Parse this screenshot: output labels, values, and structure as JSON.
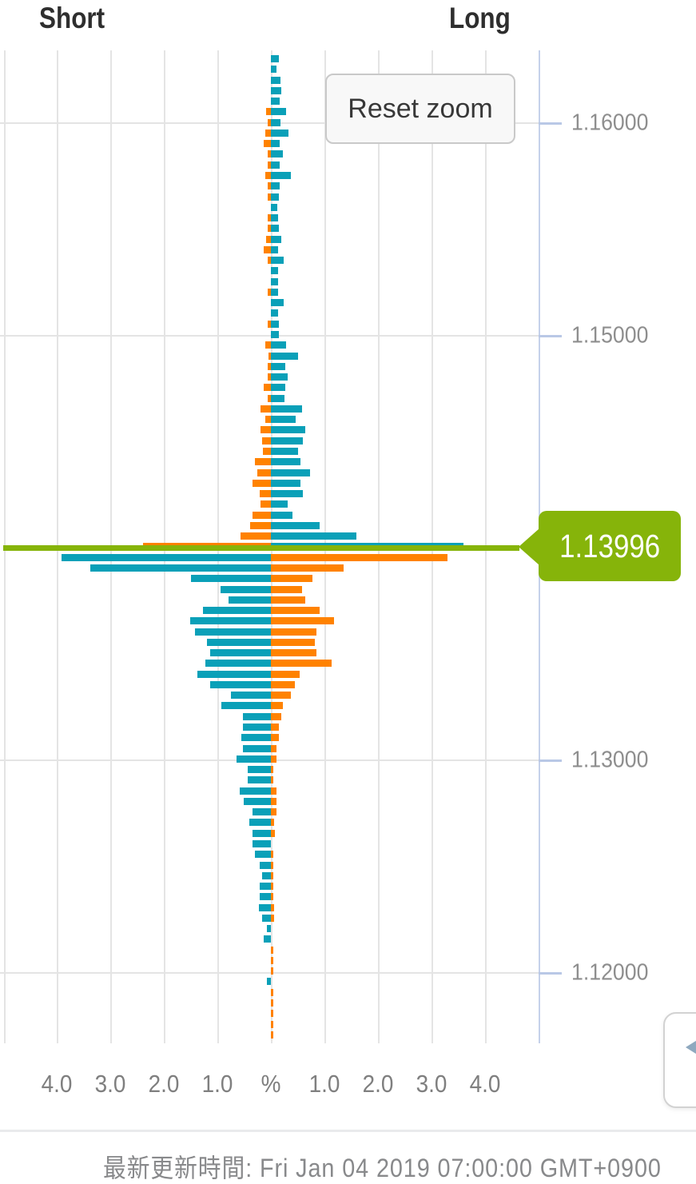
{
  "header": {
    "short_label": "Short",
    "long_label": "Long"
  },
  "reset_button": {
    "label": "Reset zoom"
  },
  "current_price": {
    "label": "1.13996",
    "value": 1.13996
  },
  "footer": {
    "text": "最新更新時間: Fri Jan 04 2019 07:00:00 GMT+0900"
  },
  "icons": {
    "side_widget_arrow": "left-triangle"
  },
  "colors": {
    "teal": "#0aa0b8",
    "orange": "#ff8200",
    "green": "#86b40a",
    "grid": "#e4e4e4",
    "axis_line": "#c5d1ea",
    "axis_tick": "#b9c8e6",
    "price_label": "#8e8e8e",
    "x_label": "#7f7f7f"
  },
  "chart_data": {
    "type": "bar",
    "orientation": "horizontal-bidirectional",
    "title_left": "Short",
    "title_right": "Long",
    "xlabel": "%",
    "x_tick_labels": [
      "4.0",
      "3.0",
      "2.0",
      "1.0",
      "%",
      "1.0",
      "2.0",
      "3.0",
      "4.0"
    ],
    "x_range_pct": [
      -4.5,
      4.5
    ],
    "grid": true,
    "price_axis": {
      "side": "right",
      "labels": [
        {
          "text": "1.16000",
          "value": 1.16
        },
        {
          "text": "1.15000",
          "value": 1.15
        },
        {
          "text": "1.13000",
          "value": 1.13
        },
        {
          "text": "1.12000",
          "value": 1.12
        }
      ]
    },
    "current_price_line": {
      "value": 1.13996,
      "label": "1.13996"
    },
    "row_price_start": 1.16303,
    "row_price_step": -0.0005,
    "divider_row_index": 46,
    "color_rule": {
      "above_line": {
        "short_side": "orange",
        "long_side": "teal"
      },
      "below_line": {
        "short_side": "teal",
        "long_side": "orange"
      }
    },
    "rows_pct_short_long": [
      [
        0,
        0.15
      ],
      [
        0,
        0.1
      ],
      [
        0,
        0.18
      ],
      [
        0,
        0.19
      ],
      [
        0,
        0.17
      ],
      [
        0.09,
        0.28
      ],
      [
        0.06,
        0.18
      ],
      [
        0.1,
        0.33
      ],
      [
        0.13,
        0.16
      ],
      [
        0.06,
        0.22
      ],
      [
        0.06,
        0.17
      ],
      [
        0.1,
        0.37
      ],
      [
        0.06,
        0.16
      ],
      [
        0.06,
        0.15
      ],
      [
        0,
        0.12
      ],
      [
        0.06,
        0.13
      ],
      [
        0.06,
        0.15
      ],
      [
        0.09,
        0.19
      ],
      [
        0.13,
        0.14
      ],
      [
        0.06,
        0.24
      ],
      [
        0,
        0.14
      ],
      [
        0,
        0.14
      ],
      [
        0.06,
        0.13
      ],
      [
        0,
        0.24
      ],
      [
        0,
        0.14
      ],
      [
        0.06,
        0.15
      ],
      [
        0,
        0.15
      ],
      [
        0.1,
        0.28
      ],
      [
        0.03,
        0.51
      ],
      [
        0.06,
        0.27
      ],
      [
        0.06,
        0.32
      ],
      [
        0.13,
        0.27
      ],
      [
        0.06,
        0.26
      ],
      [
        0.2,
        0.59
      ],
      [
        0.11,
        0.46
      ],
      [
        0.2,
        0.64
      ],
      [
        0.17,
        0.6
      ],
      [
        0.15,
        0.51
      ],
      [
        0.3,
        0.56
      ],
      [
        0.25,
        0.73
      ],
      [
        0.34,
        0.55
      ],
      [
        0.21,
        0.6
      ],
      [
        0.19,
        0.32
      ],
      [
        0.34,
        0.41
      ],
      [
        0.39,
        0.91
      ],
      [
        0.57,
        1.6
      ],
      [
        2.39,
        3.6
      ],
      [
        3.91,
        3.3
      ],
      [
        3.38,
        1.36
      ],
      [
        1.49,
        0.77
      ],
      [
        0.94,
        0.58
      ],
      [
        0.79,
        0.64
      ],
      [
        1.27,
        0.91
      ],
      [
        1.51,
        1.18
      ],
      [
        1.42,
        0.85
      ],
      [
        1.19,
        0.82
      ],
      [
        1.14,
        0.85
      ],
      [
        1.23,
        1.13
      ],
      [
        1.37,
        0.54
      ],
      [
        1.14,
        0.45
      ],
      [
        0.75,
        0.37
      ],
      [
        0.92,
        0.23
      ],
      [
        0.52,
        0.19
      ],
      [
        0.52,
        0.15
      ],
      [
        0.56,
        0.15
      ],
      [
        0.52,
        0.1
      ],
      [
        0.65,
        0.1
      ],
      [
        0.43,
        0.05
      ],
      [
        0.43,
        0.03
      ],
      [
        0.58,
        0.1
      ],
      [
        0.51,
        0.1
      ],
      [
        0.35,
        0.1
      ],
      [
        0.4,
        0.06
      ],
      [
        0.35,
        0.07
      ],
      [
        0.34,
        0
      ],
      [
        0.3,
        0.02
      ],
      [
        0.21,
        0.03
      ],
      [
        0.16,
        0.03
      ],
      [
        0.21,
        0.05
      ],
      [
        0.21,
        0.02
      ],
      [
        0.22,
        0.06
      ],
      [
        0.17,
        0.06
      ],
      [
        0.08,
        0
      ],
      [
        0.13,
        0
      ],
      [
        0,
        0.05
      ],
      [
        0,
        0.05
      ],
      [
        0,
        0.05
      ],
      [
        0.07,
        0
      ],
      [
        0,
        0.05
      ],
      [
        0,
        0.05
      ],
      [
        0,
        0.05
      ],
      [
        0,
        0.05
      ],
      [
        0,
        0.05
      ]
    ]
  }
}
